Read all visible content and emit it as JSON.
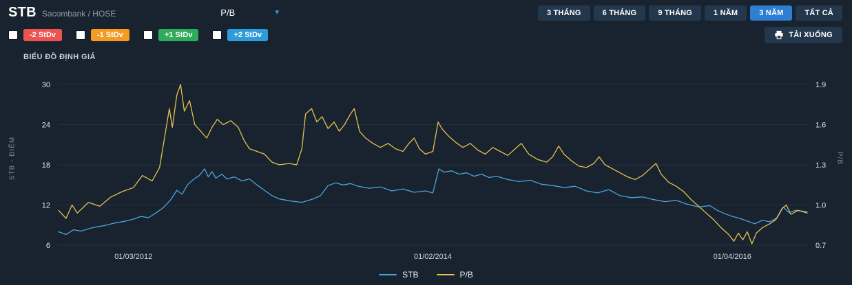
{
  "header": {
    "symbol": "STB",
    "subtitle": "Sacombank / HOSE",
    "metric_dropdown": {
      "selected": "P/B"
    },
    "range_buttons": [
      {
        "label": "3 THÁNG",
        "active": false
      },
      {
        "label": "6 THÁNG",
        "active": false
      },
      {
        "label": "9 THÁNG",
        "active": false
      },
      {
        "label": "1 NĂM",
        "active": false
      },
      {
        "label": "3 NĂM",
        "active": true
      },
      {
        "label": "TẤT CẢ",
        "active": false
      }
    ],
    "active_range_color": "#2d7fd4"
  },
  "controls": {
    "stdev_toggles": [
      {
        "label": "-2 StDv",
        "color": "#ed5351",
        "checked": false
      },
      {
        "label": "-1 StDv",
        "color": "#f59b23",
        "checked": false
      },
      {
        "label": "+1 StDv",
        "color": "#2eac5b",
        "checked": false
      },
      {
        "label": "+2 StDv",
        "color": "#2d9cdb",
        "checked": false
      }
    ],
    "download_label": "TẢI XUỐNG"
  },
  "chart_data": {
    "type": "line",
    "title": "BIỂU ĐỒ ĐỊNH GIÁ",
    "grid": true,
    "legend_position": "bottom",
    "x_axis": {
      "labels": [
        {
          "text": "01/03/2012",
          "t": 0.1
        },
        {
          "text": "01/02/2014",
          "t": 0.5
        },
        {
          "text": "01/04/2016",
          "t": 0.9
        }
      ]
    },
    "left_axis": {
      "title": "STB - ĐIỂM",
      "min": 6,
      "max": 30,
      "ticks": [
        30,
        24,
        18,
        12,
        6
      ]
    },
    "right_axis": {
      "title": "P/B",
      "min": 0.7,
      "max": 1.9,
      "ticks": [
        1.9,
        1.6,
        1.3,
        1.0,
        0.7
      ]
    },
    "series": [
      {
        "name": "STB",
        "axis": "left",
        "color": "#4aa6e0",
        "points": [
          [
            0.0,
            8.0
          ],
          [
            0.01,
            7.6
          ],
          [
            0.02,
            8.3
          ],
          [
            0.03,
            8.1
          ],
          [
            0.045,
            8.6
          ],
          [
            0.06,
            8.9
          ],
          [
            0.075,
            9.3
          ],
          [
            0.09,
            9.6
          ],
          [
            0.1,
            9.9
          ],
          [
            0.11,
            10.3
          ],
          [
            0.12,
            10.1
          ],
          [
            0.13,
            10.8
          ],
          [
            0.14,
            11.6
          ],
          [
            0.15,
            12.8
          ],
          [
            0.158,
            14.2
          ],
          [
            0.165,
            13.6
          ],
          [
            0.172,
            15.0
          ],
          [
            0.18,
            15.8
          ],
          [
            0.188,
            16.4
          ],
          [
            0.195,
            17.4
          ],
          [
            0.2,
            16.2
          ],
          [
            0.205,
            17.0
          ],
          [
            0.21,
            16.0
          ],
          [
            0.218,
            16.6
          ],
          [
            0.225,
            15.9
          ],
          [
            0.235,
            16.2
          ],
          [
            0.245,
            15.6
          ],
          [
            0.255,
            15.9
          ],
          [
            0.265,
            15.0
          ],
          [
            0.275,
            14.2
          ],
          [
            0.285,
            13.4
          ],
          [
            0.295,
            12.9
          ],
          [
            0.31,
            12.6
          ],
          [
            0.325,
            12.4
          ],
          [
            0.34,
            12.9
          ],
          [
            0.35,
            13.4
          ],
          [
            0.36,
            14.9
          ],
          [
            0.37,
            15.3
          ],
          [
            0.38,
            15.0
          ],
          [
            0.39,
            15.2
          ],
          [
            0.4,
            14.8
          ],
          [
            0.415,
            14.5
          ],
          [
            0.43,
            14.7
          ],
          [
            0.445,
            14.1
          ],
          [
            0.46,
            14.4
          ],
          [
            0.475,
            13.9
          ],
          [
            0.49,
            14.1
          ],
          [
            0.5,
            13.8
          ],
          [
            0.508,
            17.4
          ],
          [
            0.515,
            16.9
          ],
          [
            0.525,
            17.1
          ],
          [
            0.535,
            16.6
          ],
          [
            0.545,
            16.8
          ],
          [
            0.555,
            16.3
          ],
          [
            0.565,
            16.6
          ],
          [
            0.575,
            16.1
          ],
          [
            0.585,
            16.3
          ],
          [
            0.6,
            15.8
          ],
          [
            0.615,
            15.5
          ],
          [
            0.63,
            15.7
          ],
          [
            0.645,
            15.1
          ],
          [
            0.66,
            14.9
          ],
          [
            0.675,
            14.6
          ],
          [
            0.69,
            14.8
          ],
          [
            0.705,
            14.1
          ],
          [
            0.72,
            13.8
          ],
          [
            0.735,
            14.3
          ],
          [
            0.75,
            13.4
          ],
          [
            0.765,
            13.1
          ],
          [
            0.78,
            13.2
          ],
          [
            0.795,
            12.8
          ],
          [
            0.81,
            12.5
          ],
          [
            0.825,
            12.7
          ],
          [
            0.84,
            12.1
          ],
          [
            0.855,
            11.7
          ],
          [
            0.87,
            11.9
          ],
          [
            0.88,
            11.2
          ],
          [
            0.89,
            10.7
          ],
          [
            0.9,
            10.3
          ],
          [
            0.91,
            10.0
          ],
          [
            0.92,
            9.6
          ],
          [
            0.93,
            9.2
          ],
          [
            0.94,
            9.7
          ],
          [
            0.95,
            9.5
          ],
          [
            0.96,
            10.1
          ],
          [
            0.968,
            11.7
          ],
          [
            0.975,
            10.9
          ],
          [
            0.985,
            11.2
          ],
          [
            1.0,
            11.0
          ]
        ]
      },
      {
        "name": "P/B",
        "axis": "right",
        "color": "#e6c14d",
        "points": [
          [
            0.0,
            0.96
          ],
          [
            0.01,
            0.9
          ],
          [
            0.018,
            1.0
          ],
          [
            0.025,
            0.94
          ],
          [
            0.04,
            1.02
          ],
          [
            0.055,
            0.99
          ],
          [
            0.07,
            1.06
          ],
          [
            0.085,
            1.1
          ],
          [
            0.1,
            1.13
          ],
          [
            0.112,
            1.22
          ],
          [
            0.125,
            1.18
          ],
          [
            0.135,
            1.28
          ],
          [
            0.143,
            1.55
          ],
          [
            0.148,
            1.72
          ],
          [
            0.152,
            1.58
          ],
          [
            0.158,
            1.82
          ],
          [
            0.163,
            1.9
          ],
          [
            0.168,
            1.7
          ],
          [
            0.175,
            1.78
          ],
          [
            0.182,
            1.6
          ],
          [
            0.19,
            1.55
          ],
          [
            0.198,
            1.5
          ],
          [
            0.205,
            1.58
          ],
          [
            0.212,
            1.64
          ],
          [
            0.22,
            1.6
          ],
          [
            0.23,
            1.63
          ],
          [
            0.24,
            1.58
          ],
          [
            0.248,
            1.48
          ],
          [
            0.255,
            1.42
          ],
          [
            0.265,
            1.4
          ],
          [
            0.275,
            1.38
          ],
          [
            0.285,
            1.32
          ],
          [
            0.295,
            1.3
          ],
          [
            0.308,
            1.31
          ],
          [
            0.318,
            1.3
          ],
          [
            0.325,
            1.42
          ],
          [
            0.33,
            1.68
          ],
          [
            0.338,
            1.72
          ],
          [
            0.345,
            1.62
          ],
          [
            0.352,
            1.66
          ],
          [
            0.36,
            1.57
          ],
          [
            0.368,
            1.62
          ],
          [
            0.375,
            1.55
          ],
          [
            0.382,
            1.6
          ],
          [
            0.39,
            1.68
          ],
          [
            0.395,
            1.72
          ],
          [
            0.402,
            1.55
          ],
          [
            0.41,
            1.5
          ],
          [
            0.42,
            1.46
          ],
          [
            0.43,
            1.43
          ],
          [
            0.44,
            1.46
          ],
          [
            0.45,
            1.42
          ],
          [
            0.46,
            1.4
          ],
          [
            0.468,
            1.46
          ],
          [
            0.475,
            1.5
          ],
          [
            0.482,
            1.42
          ],
          [
            0.49,
            1.38
          ],
          [
            0.5,
            1.4
          ],
          [
            0.507,
            1.62
          ],
          [
            0.512,
            1.57
          ],
          [
            0.52,
            1.52
          ],
          [
            0.53,
            1.47
          ],
          [
            0.54,
            1.43
          ],
          [
            0.55,
            1.46
          ],
          [
            0.56,
            1.41
          ],
          [
            0.57,
            1.38
          ],
          [
            0.58,
            1.43
          ],
          [
            0.59,
            1.4
          ],
          [
            0.6,
            1.37
          ],
          [
            0.61,
            1.42
          ],
          [
            0.618,
            1.46
          ],
          [
            0.628,
            1.38
          ],
          [
            0.64,
            1.34
          ],
          [
            0.652,
            1.32
          ],
          [
            0.66,
            1.36
          ],
          [
            0.668,
            1.44
          ],
          [
            0.675,
            1.38
          ],
          [
            0.685,
            1.33
          ],
          [
            0.695,
            1.29
          ],
          [
            0.705,
            1.28
          ],
          [
            0.715,
            1.31
          ],
          [
            0.722,
            1.36
          ],
          [
            0.73,
            1.3
          ],
          [
            0.74,
            1.27
          ],
          [
            0.75,
            1.24
          ],
          [
            0.76,
            1.21
          ],
          [
            0.77,
            1.19
          ],
          [
            0.78,
            1.22
          ],
          [
            0.79,
            1.27
          ],
          [
            0.798,
            1.31
          ],
          [
            0.805,
            1.23
          ],
          [
            0.815,
            1.17
          ],
          [
            0.825,
            1.14
          ],
          [
            0.835,
            1.1
          ],
          [
            0.845,
            1.04
          ],
          [
            0.855,
            0.99
          ],
          [
            0.865,
            0.94
          ],
          [
            0.875,
            0.89
          ],
          [
            0.885,
            0.83
          ],
          [
            0.895,
            0.78
          ],
          [
            0.902,
            0.73
          ],
          [
            0.908,
            0.79
          ],
          [
            0.914,
            0.74
          ],
          [
            0.92,
            0.8
          ],
          [
            0.926,
            0.71
          ],
          [
            0.932,
            0.79
          ],
          [
            0.94,
            0.83
          ],
          [
            0.95,
            0.86
          ],
          [
            0.958,
            0.89
          ],
          [
            0.966,
            0.97
          ],
          [
            0.972,
            1.0
          ],
          [
            0.978,
            0.93
          ],
          [
            0.988,
            0.96
          ],
          [
            1.0,
            0.94
          ]
        ]
      }
    ]
  }
}
